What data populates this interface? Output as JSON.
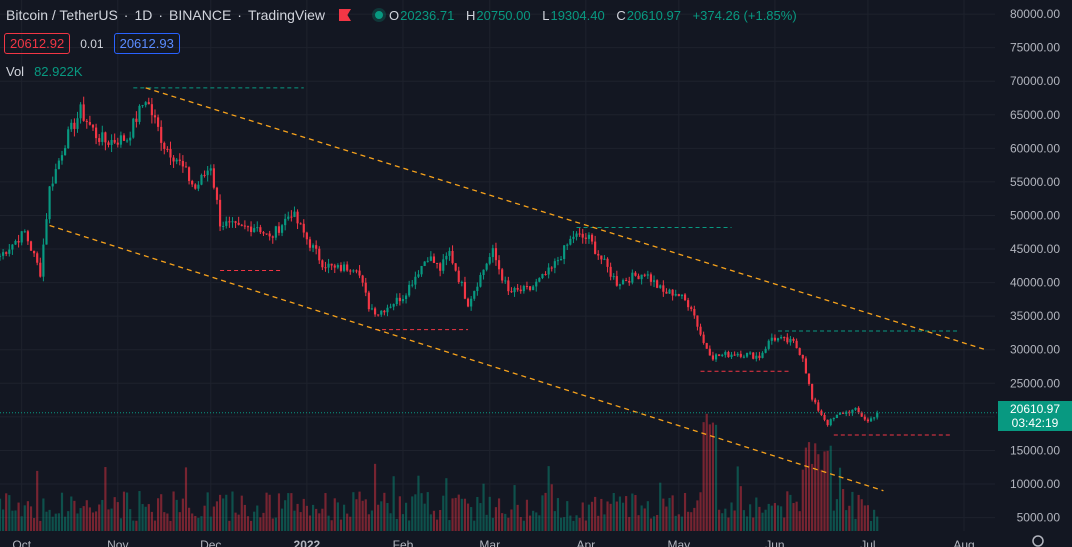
{
  "header": {
    "symbol": "Bitcoin / TetherUS",
    "interval": "1D",
    "exchange": "BINANCE",
    "source": "TradingView",
    "ohlc": {
      "o_label": "O",
      "open": "20236.71",
      "h_label": "H",
      "high": "20750.00",
      "l_label": "L",
      "low": "19304.40",
      "c_label": "C",
      "close": "20610.97",
      "change": "+374.26 (+1.85%)"
    }
  },
  "quote": {
    "sell": "20612.92",
    "spread": "0.01",
    "buy": "20612.93"
  },
  "volume": {
    "label": "Vol",
    "value": "82.922K"
  },
  "price_tag": {
    "price": "20610.97",
    "countdown": "03:42:19"
  },
  "colors": {
    "up": "#089981",
    "down": "#f23645",
    "background": "#131722",
    "grid": "#1e222d",
    "trendline": "#f7a21b"
  },
  "chart_data": {
    "type": "candlestick",
    "y_axis": {
      "ticks": [
        "80000.00",
        "75000.00",
        "70000.00",
        "65000.00",
        "60000.00",
        "55000.00",
        "50000.00",
        "45000.00",
        "40000.00",
        "35000.00",
        "30000.00",
        "25000.00",
        "20000.00",
        "15000.00",
        "10000.00",
        "5000.00"
      ],
      "range": [
        3000,
        81500
      ],
      "position": "right"
    },
    "x_axis": {
      "ticks": [
        "Oct",
        "Nov",
        "Dec",
        "2022",
        "Feb",
        "Mar",
        "Apr",
        "May",
        "Jun",
        "Jul",
        "Aug"
      ],
      "range": [
        "2021-09-24",
        "2022-08-11"
      ]
    },
    "anchors": [
      [
        "2021-09-24",
        44000
      ],
      [
        "2021-10-02",
        47500
      ],
      [
        "2021-10-07",
        41500
      ],
      [
        "2021-10-10",
        54000
      ],
      [
        "2021-10-15",
        61000
      ],
      [
        "2021-10-20",
        65500
      ],
      [
        "2021-10-25",
        62000
      ],
      [
        "2021-10-28",
        61000
      ],
      [
        "2021-11-04",
        61500
      ],
      [
        "2021-11-10",
        67500
      ],
      [
        "2021-11-16",
        60500
      ],
      [
        "2021-11-20",
        58500
      ],
      [
        "2021-11-26",
        54000
      ],
      [
        "2021-12-01",
        57500
      ],
      [
        "2021-12-04",
        49000
      ],
      [
        "2021-12-10",
        48000
      ],
      [
        "2021-12-16",
        48500
      ],
      [
        "2021-12-20",
        46500
      ],
      [
        "2021-12-27",
        50500
      ],
      [
        "2022-01-01",
        46500
      ],
      [
        "2022-01-06",
        43000
      ],
      [
        "2022-01-10",
        42000
      ],
      [
        "2022-01-17",
        42500
      ],
      [
        "2022-01-21",
        36500
      ],
      [
        "2022-01-24",
        35500
      ],
      [
        "2022-02-01",
        38000
      ],
      [
        "2022-02-09",
        44000
      ],
      [
        "2022-02-13",
        42000
      ],
      [
        "2022-02-16",
        44500
      ],
      [
        "2022-02-22",
        37000
      ],
      [
        "2022-02-28",
        43000
      ],
      [
        "2022-03-02",
        44500
      ],
      [
        "2022-03-07",
        38500
      ],
      [
        "2022-03-14",
        39000
      ],
      [
        "2022-03-21",
        42000
      ],
      [
        "2022-03-28",
        47000
      ],
      [
        "2022-04-02",
        46500
      ],
      [
        "2022-04-06",
        43500
      ],
      [
        "2022-04-11",
        40000
      ],
      [
        "2022-04-20",
        41500
      ],
      [
        "2022-04-26",
        38500
      ],
      [
        "2022-04-30",
        38500
      ],
      [
        "2022-05-05",
        36500
      ],
      [
        "2022-05-09",
        31000
      ],
      [
        "2022-05-12",
        29000
      ],
      [
        "2022-05-20",
        29500
      ],
      [
        "2022-05-27",
        29000
      ],
      [
        "2022-05-31",
        31800
      ],
      [
        "2022-06-07",
        31000
      ],
      [
        "2022-06-10",
        29000
      ],
      [
        "2022-06-13",
        22500
      ],
      [
        "2022-06-18",
        19000
      ],
      [
        "2022-06-22",
        20500
      ],
      [
        "2022-06-27",
        21000
      ],
      [
        "2022-07-01",
        19300
      ],
      [
        "2022-07-04",
        20600
      ]
    ],
    "trendlines": [
      {
        "from": [
          "2021-11-10",
          69000
        ],
        "to": [
          "2022-08-08",
          30000
        ]
      },
      {
        "from": [
          "2021-10-10",
          48500
        ],
        "to": [
          "2022-07-06",
          9000
        ]
      }
    ],
    "levels": [
      {
        "color": "#089981",
        "from": "2021-11-06",
        "to": "2021-12-31",
        "price": 69000
      },
      {
        "color": "#f23645",
        "from": "2021-12-04",
        "to": "2021-12-24",
        "price": 41800
      },
      {
        "color": "#f23645",
        "from": "2022-01-23",
        "to": "2022-02-22",
        "price": 33000
      },
      {
        "color": "#089981",
        "from": "2022-03-29",
        "to": "2022-05-18",
        "price": 48200
      },
      {
        "color": "#f23645",
        "from": "2022-05-08",
        "to": "2022-06-06",
        "price": 26800
      },
      {
        "color": "#089981",
        "from": "2022-06-02",
        "to": "2022-07-30",
        "price": 32800
      },
      {
        "color": "#f23645",
        "from": "2022-06-20",
        "to": "2022-07-28",
        "price": 17300
      }
    ],
    "current_price": 20610.97
  }
}
